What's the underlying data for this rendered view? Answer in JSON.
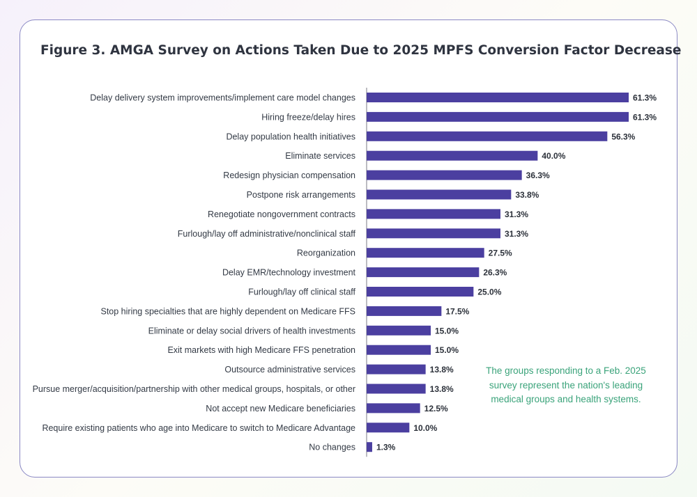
{
  "colors": {
    "bar": "#4b3fa0",
    "title": "#2f3440",
    "note": "#3aa37a",
    "border": "#8a88c4"
  },
  "note": "The groups responding to a Feb. 2025 survey represent the nation's leading medical groups and health systems.",
  "chart_data": {
    "type": "bar",
    "orientation": "horizontal",
    "title": "Figure 3. AMGA Survey on Actions Taken Due to 2025 MPFS Conversion Factor Decrease",
    "xlabel": "",
    "ylabel": "",
    "grid": false,
    "legend": "none",
    "xlim": [
      0,
      61.3
    ],
    "categories": [
      "Delay delivery system improvements/implement care model changes",
      "Hiring freeze/delay hires",
      "Delay population health initiatives",
      "Eliminate services",
      "Redesign physician compensation",
      "Postpone risk arrangements",
      "Renegotiate nongovernment contracts",
      "Furlough/lay off administrative/nonclinical staff",
      "Reorganization",
      "Delay EMR/technology investment",
      "Furlough/lay off clinical staff",
      "Stop hiring specialties that are highly dependent on Medicare FFS",
      "Eliminate or delay social drivers of health investments",
      "Exit markets with high Medicare FFS penetration",
      "Outsource administrative services",
      "Pursue merger/acquisition/partnership with other medical groups, hospitals, or other",
      "Not accept new Medicare beneficiaries",
      "Require existing patients who age into Medicare to switch to Medicare Advantage",
      "No changes"
    ],
    "values": [
      61.3,
      61.3,
      56.3,
      40.0,
      36.3,
      33.8,
      31.3,
      31.3,
      27.5,
      26.3,
      25.0,
      17.5,
      15.0,
      15.0,
      13.8,
      13.8,
      12.5,
      10.0,
      1.3
    ],
    "value_labels": [
      "61.3%",
      "61.3%",
      "56.3%",
      "40.0%",
      "36.3%",
      "33.8%",
      "31.3%",
      "31.3%",
      "27.5%",
      "26.3%",
      "25.0%",
      "17.5%",
      "15.0%",
      "15.0%",
      "13.8%",
      "13.8%",
      "12.5%",
      "10.0%",
      "1.3%"
    ]
  }
}
